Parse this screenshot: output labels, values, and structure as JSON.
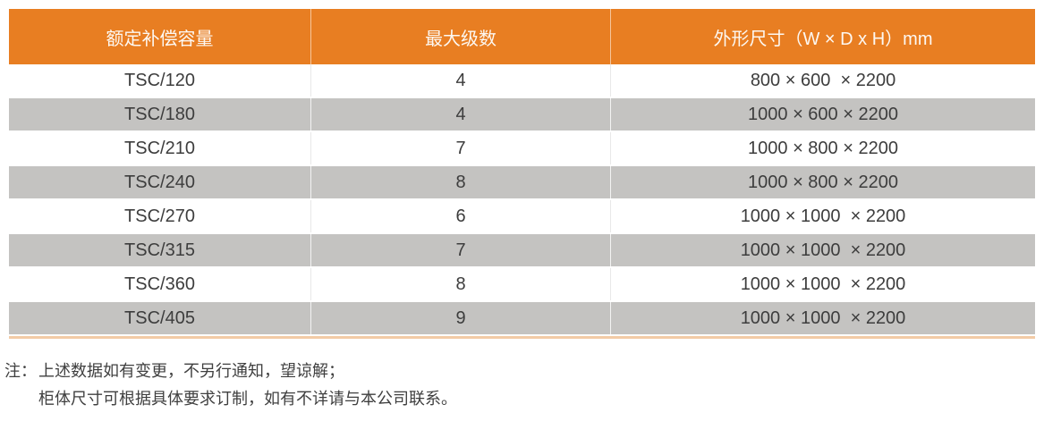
{
  "table": {
    "columns": [
      {
        "label": "额定补偿容量"
      },
      {
        "label": "最大级数"
      },
      {
        "label": "外形尺寸（W × D x H）mm"
      }
    ],
    "rows": [
      {
        "model": "TSC/120",
        "stages": "4",
        "dimensions": "800 × 600  × 2200"
      },
      {
        "model": "TSC/180",
        "stages": "4",
        "dimensions": "1000 × 600 × 2200"
      },
      {
        "model": "TSC/210",
        "stages": "7",
        "dimensions": "1000 × 800 × 2200"
      },
      {
        "model": "TSC/240",
        "stages": "8",
        "dimensions": "1000 × 800 × 2200"
      },
      {
        "model": "TSC/270",
        "stages": "6",
        "dimensions": "1000 × 1000  × 2200"
      },
      {
        "model": "TSC/315",
        "stages": "7",
        "dimensions": "1000 × 1000  × 2200"
      },
      {
        "model": "TSC/360",
        "stages": "8",
        "dimensions": "1000 × 1000  × 2200"
      },
      {
        "model": "TSC/405",
        "stages": "9",
        "dimensions": "1000 × 1000  × 2200"
      }
    ]
  },
  "notes": {
    "label": "注：",
    "lines": [
      "上述数据如有变更，不另行通知，望谅解；",
      "柜体尺寸可根据具体要求订制，如有不详请与本公司联系。"
    ]
  },
  "colors": {
    "header_bg": "#e87e22",
    "alt_row_bg": "#c4c3c1",
    "bottom_border": "#f2cba6",
    "header_text": "#fdf8f2",
    "body_text": "#3d3d3d"
  }
}
